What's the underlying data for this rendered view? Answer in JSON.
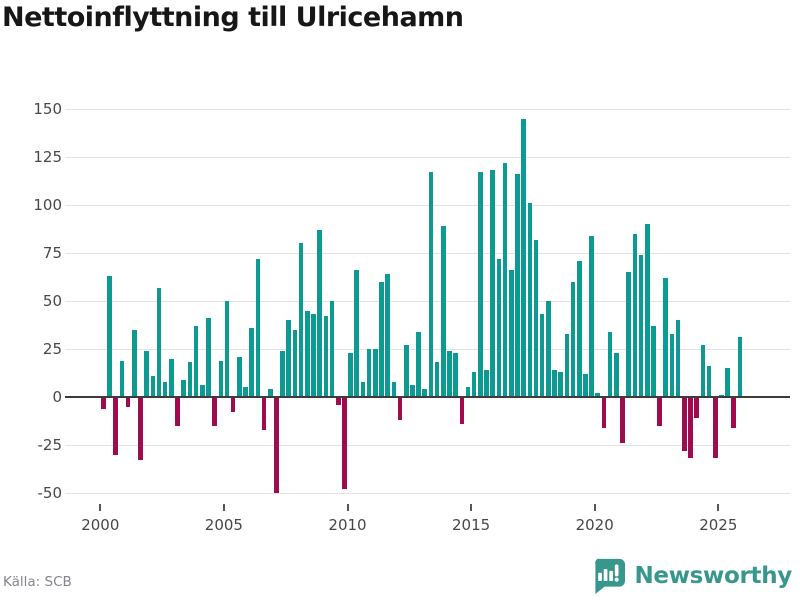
{
  "title": "Nettoinflyttning till Ulricehamn",
  "footer": {
    "source": "Källa: SCB",
    "brand": "Newsworthy"
  },
  "colors": {
    "positive": "#0c9a93",
    "negative": "#9e0c4e",
    "grid": "#e3e3e3",
    "axis_line": "#3c3c3c",
    "tick_text": "#474747",
    "title_text": "#171717",
    "source_text": "#85858d",
    "brand": "#37978d"
  },
  "chart_data": {
    "type": "bar",
    "title": "Nettoinflyttning till Ulricehamn",
    "frequency": "quarterly",
    "ylim": [
      -50,
      150
    ],
    "yticks": [
      150,
      125,
      100,
      75,
      50,
      25,
      0,
      -25,
      -50
    ],
    "xticks": [
      "2000",
      "2005",
      "2010",
      "2015",
      "2020",
      "2025"
    ],
    "grid": true,
    "legend": "none",
    "series": [
      {
        "year": 2000,
        "values": [
          -6,
          63,
          -30,
          19
        ]
      },
      {
        "year": 2001,
        "values": [
          -5,
          35,
          -33,
          24
        ]
      },
      {
        "year": 2002,
        "values": [
          11,
          57,
          8,
          20
        ]
      },
      {
        "year": 2003,
        "values": [
          -15,
          9,
          18,
          37
        ]
      },
      {
        "year": 2004,
        "values": [
          6,
          41,
          -15,
          19
        ]
      },
      {
        "year": 2005,
        "values": [
          50,
          -8,
          21,
          5
        ]
      },
      {
        "year": 2006,
        "values": [
          36,
          72,
          -17,
          4
        ]
      },
      {
        "year": 2007,
        "values": [
          -50,
          24,
          40,
          35
        ]
      },
      {
        "year": 2008,
        "values": [
          80,
          45,
          43,
          87
        ]
      },
      {
        "year": 2009,
        "values": [
          42,
          50,
          -4,
          -48
        ]
      },
      {
        "year": 2010,
        "values": [
          23,
          66,
          8,
          25
        ]
      },
      {
        "year": 2011,
        "values": [
          25,
          60,
          64,
          8
        ]
      },
      {
        "year": 2012,
        "values": [
          -12,
          27,
          6,
          34
        ]
      },
      {
        "year": 2013,
        "values": [
          4,
          117,
          18,
          89
        ]
      },
      {
        "year": 2014,
        "values": [
          24,
          23,
          -14,
          5
        ]
      },
      {
        "year": 2015,
        "values": [
          13,
          117,
          14,
          118
        ]
      },
      {
        "year": 2016,
        "values": [
          72,
          122,
          66,
          116
        ]
      },
      {
        "year": 2017,
        "values": [
          145,
          101,
          82,
          43
        ]
      },
      {
        "year": 2018,
        "values": [
          50,
          14,
          13,
          33
        ]
      },
      {
        "year": 2019,
        "values": [
          60,
          71,
          12,
          84
        ]
      },
      {
        "year": 2020,
        "values": [
          2,
          -16,
          34,
          23
        ]
      },
      {
        "year": 2021,
        "values": [
          -24,
          65,
          85,
          74
        ]
      },
      {
        "year": 2022,
        "values": [
          90,
          37,
          -15,
          62
        ]
      },
      {
        "year": 2023,
        "values": [
          33,
          40,
          -28,
          -32
        ]
      },
      {
        "year": 2024,
        "values": [
          -11,
          27,
          16,
          -32
        ]
      },
      {
        "year": 2025,
        "values": [
          1,
          15,
          -16,
          31
        ]
      }
    ]
  }
}
